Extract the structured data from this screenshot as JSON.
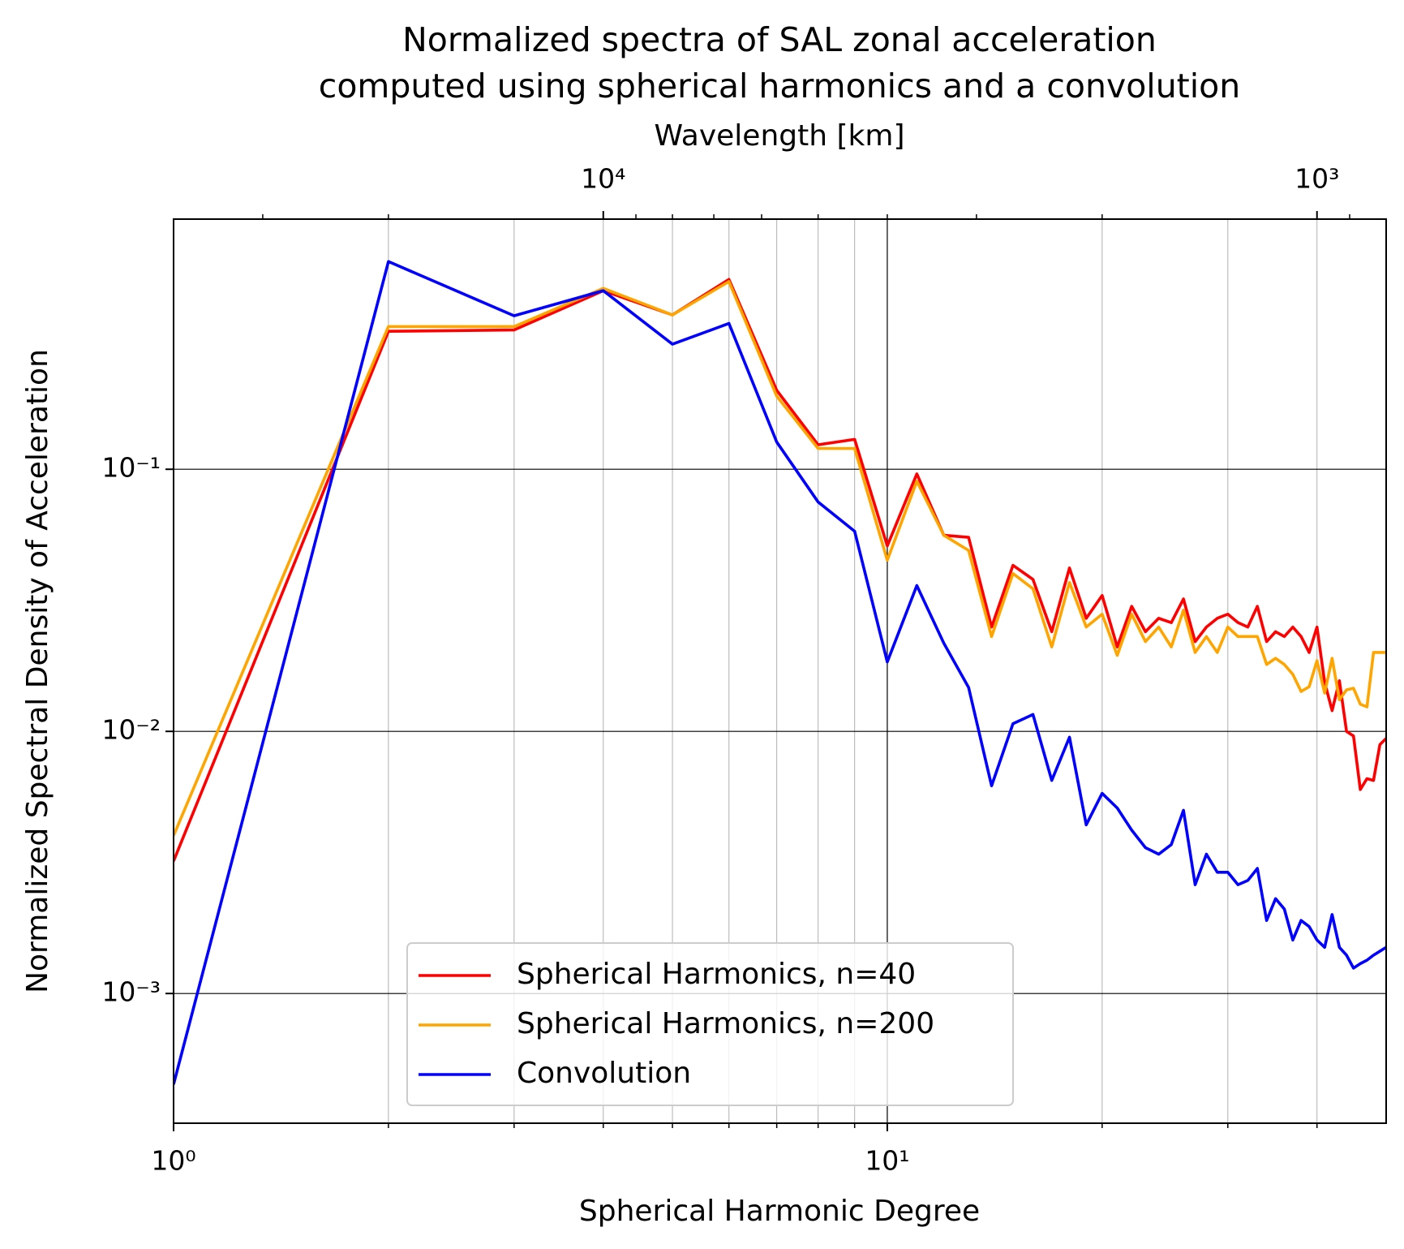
{
  "chart_data": {
    "type": "line",
    "title": "Normalized spectra of SAL zonal acceleration",
    "subtitle": "computed using spherical harmonics and a convolution",
    "xlabel": "Spherical Harmonic Degree",
    "ylabel": "Normalized Spectral Density of Acceleration",
    "x2label": "Wavelength [km]",
    "xscale": "log",
    "yscale": "log",
    "x2scale": "log",
    "xlim": [
      1,
      50
    ],
    "ylim": [
      0.00032,
      0.9
    ],
    "x2lim": [
      40000,
      800
    ],
    "xticks": [
      {
        "value": 1,
        "label": "10⁰"
      },
      {
        "value": 10,
        "label": "10¹"
      }
    ],
    "xminorticks": [
      2,
      3,
      4,
      5,
      6,
      7,
      8,
      9,
      20,
      30,
      40
    ],
    "yticks": [
      {
        "value": 0.001,
        "label": "10⁻³"
      },
      {
        "value": 0.01,
        "label": "10⁻²"
      },
      {
        "value": 0.1,
        "label": "10⁻¹"
      }
    ],
    "x2ticks": [
      {
        "value": 10000,
        "label": "10⁴"
      },
      {
        "value": 1000,
        "label": "10³"
      }
    ],
    "x2minorticks": [
      30000,
      20000,
      9000,
      8000,
      7000,
      6000,
      5000,
      4000,
      3000,
      2000,
      900
    ],
    "grid": true,
    "legend": "lower center",
    "x": [
      1,
      2,
      3,
      4,
      5,
      6,
      7,
      8,
      9,
      10,
      11,
      12,
      13,
      14,
      15,
      16,
      17,
      18,
      19,
      20,
      21,
      22,
      23,
      24,
      25,
      26,
      27,
      28,
      29,
      30,
      31,
      32,
      33,
      34,
      35,
      36,
      37,
      38,
      39,
      40,
      41,
      42,
      43,
      44,
      45,
      46,
      47,
      48,
      49,
      50
    ],
    "series": [
      {
        "name": "Spherical Harmonics, n=40",
        "color": "#ff0000",
        "values": [
          0.0032,
          0.336,
          0.34,
          0.48,
          0.388,
          0.53,
          0.2,
          0.124,
          0.13,
          0.051,
          0.096,
          0.056,
          0.055,
          0.025,
          0.043,
          0.038,
          0.024,
          0.042,
          0.027,
          0.033,
          0.021,
          0.03,
          0.024,
          0.027,
          0.026,
          0.032,
          0.022,
          0.025,
          0.027,
          0.028,
          0.026,
          0.025,
          0.03,
          0.022,
          0.024,
          0.023,
          0.025,
          0.023,
          0.02,
          0.025,
          0.0154,
          0.012,
          0.0156,
          0.01,
          0.0096,
          0.006,
          0.0066,
          0.0065,
          0.0089,
          0.0094
        ]
      },
      {
        "name": "Spherical Harmonics, n=200",
        "color": "#ffa500",
        "values": [
          0.004,
          0.35,
          0.35,
          0.49,
          0.388,
          0.52,
          0.19,
          0.12,
          0.12,
          0.045,
          0.09,
          0.056,
          0.049,
          0.023,
          0.04,
          0.035,
          0.021,
          0.037,
          0.025,
          0.028,
          0.0195,
          0.028,
          0.022,
          0.025,
          0.021,
          0.029,
          0.02,
          0.023,
          0.02,
          0.025,
          0.023,
          0.023,
          0.023,
          0.018,
          0.019,
          0.018,
          0.0165,
          0.0142,
          0.0148,
          0.0186,
          0.014,
          0.019,
          0.0132,
          0.0144,
          0.0146,
          0.0127,
          0.0124,
          0.02,
          0.02,
          0.02
        ]
      },
      {
        "name": "Convolution",
        "color": "#0000ff",
        "values": [
          0.00045,
          0.62,
          0.385,
          0.48,
          0.3,
          0.36,
          0.127,
          0.075,
          0.058,
          0.0184,
          0.036,
          0.0217,
          0.0147,
          0.0062,
          0.0107,
          0.0116,
          0.0065,
          0.0095,
          0.0044,
          0.0058,
          0.0051,
          0.0042,
          0.0036,
          0.0034,
          0.0037,
          0.005,
          0.0026,
          0.0034,
          0.0029,
          0.0029,
          0.0026,
          0.0027,
          0.003,
          0.0019,
          0.0023,
          0.0021,
          0.0016,
          0.0019,
          0.0018,
          0.0016,
          0.0015,
          0.002,
          0.0015,
          0.0014,
          0.00125,
          0.0013,
          0.00134,
          0.0014,
          0.00145,
          0.0015
        ]
      }
    ]
  }
}
